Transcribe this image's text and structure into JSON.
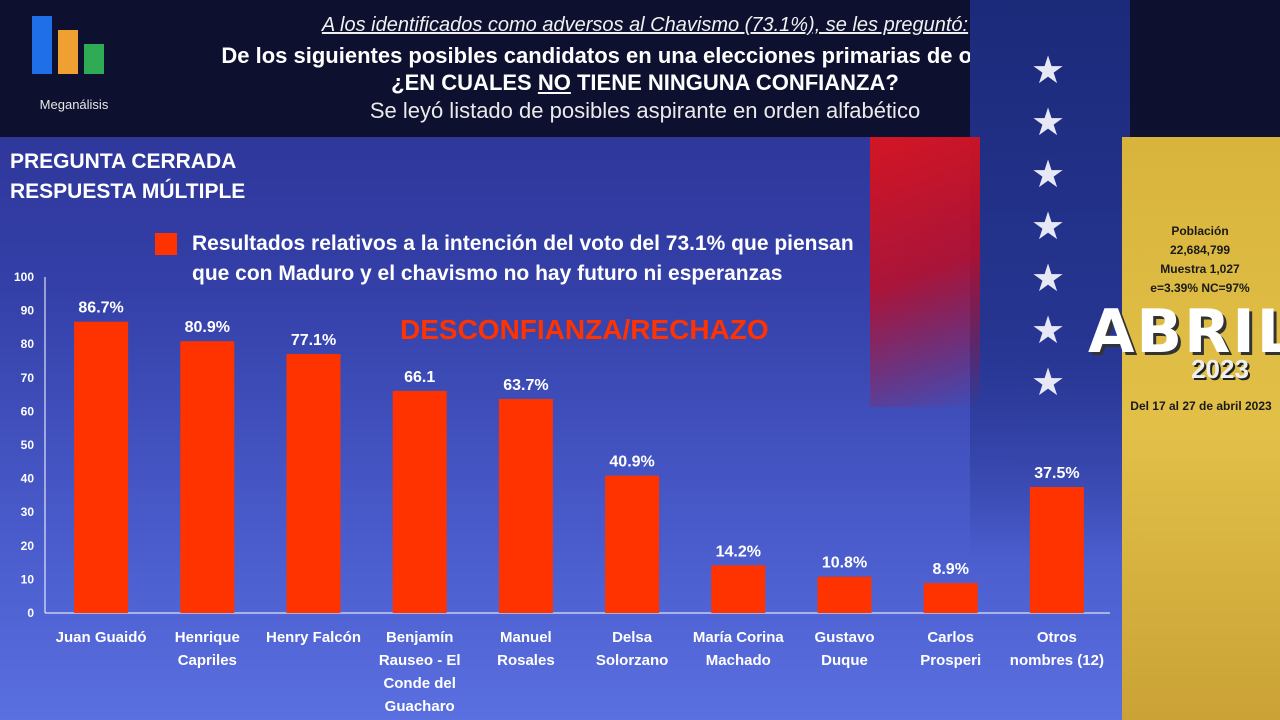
{
  "header": {
    "line1": "A los identificados como adversos al Chavismo (73.1%), se les preguntó:",
    "line2": "De los siguientes posibles candidatos en una elecciones primarias de oposición,",
    "line3_pre": "¿EN CUALES ",
    "line3_emph": "NO",
    "line3_post": " TIENE NINGUNA CONFIANZA?",
    "line4": "Se leyó listado de posibles aspirante en orden alfabético"
  },
  "logo": {
    "name": "Meganálisis",
    "colors": [
      "#1f6fe8",
      "#f0a030",
      "#2faa55"
    ]
  },
  "question_type": {
    "line1": "PREGUNTA  CERRADA",
    "line2": "RESPUESTA MÚLTIPLE"
  },
  "legend": {
    "color": "#ff3300",
    "text_line1": "Resultados relativos a la intención del voto del 73.1% que piensan",
    "text_line2": "que con Maduro y el chavismo no hay futuro ni esperanzas"
  },
  "info": {
    "poblacion_label": "Población",
    "poblacion_value": "22,684,799",
    "muestra": "Muestra 1,027",
    "error": "e=3.39%  NC=97%",
    "month": "ABRIL",
    "year": "2023",
    "dates": "Del 17 al 27 de abril 2023"
  },
  "chart_data": {
    "type": "bar",
    "subtitle": "DESCONFIANZA/RECHAZO",
    "categories": [
      "Juan Guaidó",
      "Henrique Capriles",
      "Henry Falcón",
      "Benjamín Rauseo - El Conde del Guacharo",
      "Manuel Rosales",
      "Delsa Solorzano",
      "María Corina Machado",
      "Gustavo Duque",
      "Carlos Prosperi",
      "Otros nombres (12)"
    ],
    "category_lines": [
      [
        "Juan Guaidó"
      ],
      [
        "Henrique",
        "Capriles"
      ],
      [
        "Henry Falcón"
      ],
      [
        "Benjamín",
        "Rauseo - El",
        "Conde del",
        "Guacharo"
      ],
      [
        "Manuel",
        "Rosales"
      ],
      [
        "Delsa",
        "Solorzano"
      ],
      [
        "María Corina",
        "Machado"
      ],
      [
        "Gustavo",
        "Duque"
      ],
      [
        "Carlos",
        "Prosperi"
      ],
      [
        "Otros",
        "nombres (12)"
      ]
    ],
    "values": [
      86.7,
      80.9,
      77.1,
      66.1,
      63.7,
      40.9,
      14.2,
      10.8,
      8.9,
      37.5
    ],
    "data_labels": [
      "86.7%",
      "80.9%",
      "77.1%",
      "66.1",
      "63.7%",
      "40.9%",
      "14.2%",
      "10.8%",
      "8.9%",
      "37.5%"
    ],
    "ylim": [
      0,
      100
    ],
    "yticks": [
      0,
      10,
      20,
      30,
      40,
      50,
      60,
      70,
      80,
      90,
      100
    ],
    "bar_color": "#ff3300",
    "grid": false
  }
}
